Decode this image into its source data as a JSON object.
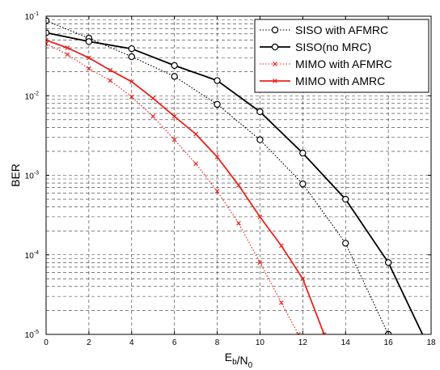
{
  "chart_data": {
    "type": "line",
    "xlabel": "E_b/N_0",
    "ylabel": "BER",
    "xlim": [
      0,
      18
    ],
    "ylim": [
      1e-05,
      0.1
    ],
    "y_scale": "log",
    "x_ticks": [
      "0",
      "2",
      "4",
      "6",
      "8",
      "10",
      "12",
      "14",
      "16",
      "18"
    ],
    "y_ticks": [
      {
        "base": "10",
        "exp": "-1"
      },
      {
        "base": "10",
        "exp": "-2"
      },
      {
        "base": "10",
        "exp": "-3"
      },
      {
        "base": "10",
        "exp": "-4"
      },
      {
        "base": "10",
        "exp": "-5"
      }
    ],
    "grid": true,
    "legend_position": "top-right",
    "series": [
      {
        "name": "SISO with AFMRC",
        "color": "#000000",
        "line": "dotted",
        "marker": "circle",
        "x": [
          0,
          2,
          4,
          6,
          8,
          10,
          12,
          14,
          16
        ],
        "y": [
          0.088,
          0.053,
          0.031,
          0.0175,
          0.0078,
          0.0028,
          0.00078,
          0.00014,
          1e-05
        ]
      },
      {
        "name": "SISO(no MRC)",
        "color": "#000000",
        "line": "solid",
        "marker": "circle",
        "x": [
          0,
          2,
          4,
          6,
          8,
          10,
          12,
          14,
          16,
          17.6
        ],
        "y": [
          0.062,
          0.048,
          0.039,
          0.024,
          0.0155,
          0.0063,
          0.0019,
          0.0005,
          8e-05,
          1e-05
        ]
      },
      {
        "name": "MIMO with AFMRC",
        "color": "#e8231c",
        "line": "dotted",
        "marker": "x",
        "x": [
          0,
          1,
          2,
          3,
          4,
          5,
          6,
          7,
          8,
          9,
          10,
          11,
          11.8
        ],
        "y": [
          0.045,
          0.033,
          0.022,
          0.0155,
          0.0097,
          0.0055,
          0.0028,
          0.0014,
          0.00063,
          0.00025,
          8e-05,
          2.5e-05,
          1e-05
        ]
      },
      {
        "name": "MIMO with AMRC",
        "color": "#e8231c",
        "line": "solid",
        "marker": "x",
        "x": [
          0,
          1,
          2,
          3,
          4,
          5,
          6,
          7,
          8,
          9,
          10,
          11,
          12,
          13
        ],
        "y": [
          0.05,
          0.04,
          0.03,
          0.021,
          0.015,
          0.0093,
          0.0055,
          0.0033,
          0.0017,
          0.00075,
          0.0003,
          0.00013,
          5e-05,
          1e-05
        ]
      }
    ]
  }
}
